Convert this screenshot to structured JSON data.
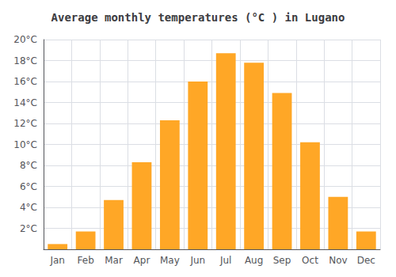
{
  "chart_data": {
    "type": "bar",
    "title": "Average monthly temperatures (°C ) in Lugano",
    "categories": [
      "Jan",
      "Feb",
      "Mar",
      "Apr",
      "May",
      "Jun",
      "Jul",
      "Aug",
      "Sep",
      "Oct",
      "Nov",
      "Dec"
    ],
    "values": [
      0.5,
      1.7,
      4.7,
      8.3,
      12.3,
      16.0,
      18.7,
      17.8,
      14.9,
      10.2,
      5.0,
      1.7
    ],
    "color": "#FFA726",
    "ylim": [
      0,
      20
    ],
    "yticks": [
      {
        "value": 2,
        "label": "2°C"
      },
      {
        "value": 4,
        "label": "4°C"
      },
      {
        "value": 6,
        "label": "6°C"
      },
      {
        "value": 8,
        "label": "8°C"
      },
      {
        "value": 10,
        "label": "10°C"
      },
      {
        "value": 12,
        "label": "12°C"
      },
      {
        "value": 14,
        "label": "14°C"
      },
      {
        "value": 16,
        "label": "16°C"
      },
      {
        "value": 18,
        "label": "18°C"
      },
      {
        "value": 20,
        "label": "20°C"
      }
    ],
    "grid": true
  }
}
